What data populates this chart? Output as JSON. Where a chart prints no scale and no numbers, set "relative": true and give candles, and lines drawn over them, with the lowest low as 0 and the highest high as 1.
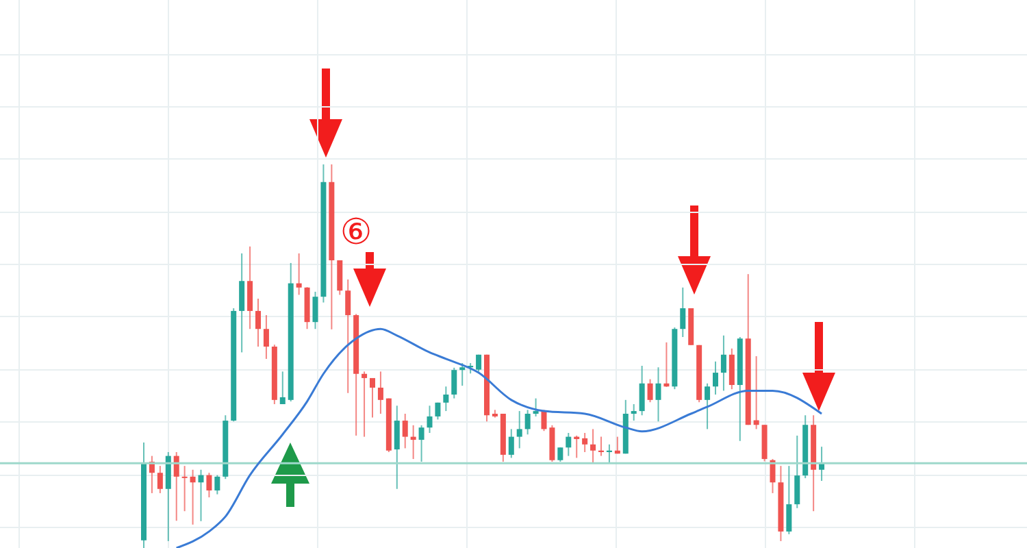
{
  "chart_data": {
    "type": "candlestick",
    "relative": true,
    "grid": true,
    "colors": [
      "#26a69a",
      "#ef5350",
      "#ef5350",
      "#26a69a",
      "#ef5350",
      "#ef5350",
      "#ef5350",
      "#26a69a",
      "#ef5350",
      "#26a69a",
      "#26a69a",
      "#26a69a",
      "#26a69a",
      "#ef5350",
      "#ef5350",
      "#ef5350",
      "#ef5350",
      "#26a69a",
      "#26a69a",
      "#ef5350",
      "#ef5350",
      "#26a69a",
      "#26a69a",
      "#ef5350",
      "#ef5350",
      "#ef5350",
      "#ef5350",
      "#ef5350",
      "#ef5350",
      "#ef5350",
      "#ef5350",
      "#26a69a",
      "#ef5350",
      "#ef5350",
      "#26a69a",
      "#26a69a",
      "#26a69a",
      "#26a69a",
      "#26a69a",
      "#26a69a",
      "#26a69a",
      "#26a69a",
      "#ef5350",
      "#ef5350",
      "#ef5350",
      "#26a69a",
      "#26a69a",
      "#26a69a",
      "#26a69a",
      "#ef5350",
      "#ef5350",
      "#26a69a",
      "#26a69a",
      "#ef5350",
      "#ef5350",
      "#ef5350",
      "#ef5350",
      "#26a69a",
      "#ef5350",
      "#26a69a",
      "#26a69a",
      "#26a69a",
      "#ef5350",
      "#26a69a",
      "#ef5350",
      "#26a69a",
      "#26a69a",
      "#ef5350",
      "#ef5350",
      "#26a69a",
      "#26a69a",
      "#26a69a",
      "#ef5350",
      "#26a69a",
      "#ef5350",
      "#ef5350",
      "#ef5350",
      "#ef5350",
      "#ef5350",
      "#26a69a",
      "#26a69a",
      "#26a69a",
      "#ef5350",
      "#26a69a"
    ],
    "annotations": [
      "⑥"
    ],
    "categories": [
      null,
      null,
      null,
      null,
      null,
      null,
      null,
      null,
      null,
      null,
      null,
      null,
      null,
      null,
      null,
      null,
      null,
      null,
      null,
      null,
      null,
      null,
      null,
      null,
      null,
      null,
      null,
      null,
      null,
      null,
      null,
      null,
      null,
      null,
      null,
      null,
      null,
      null,
      null,
      null,
      null,
      null,
      null,
      null,
      null,
      null,
      null,
      null,
      null,
      null,
      null,
      null,
      null,
      null,
      null,
      null,
      null,
      null,
      null,
      null,
      null,
      null,
      null,
      null,
      null,
      null,
      null,
      null,
      null,
      null,
      null,
      null,
      null,
      null,
      null,
      null,
      null,
      null,
      null,
      null,
      null,
      null,
      null,
      null
    ],
    "ohlc": [
      [
        0.02,
        0.275,
        0,
        0.22
      ],
      [
        0.225,
        0.24,
        0.143,
        0.196
      ],
      [
        0.196,
        0.214,
        0.143,
        0.154
      ],
      [
        0.154,
        0.25,
        0.018,
        0.24
      ],
      [
        0.24,
        0.25,
        0.071,
        0.186
      ],
      [
        0.186,
        0.214,
        0.096,
        0.183
      ],
      [
        0.186,
        0.204,
        0.061,
        0.171
      ],
      [
        0.171,
        0.204,
        0.07,
        0.19
      ],
      [
        0.19,
        0.196,
        0.132,
        0.15
      ],
      [
        0.15,
        0.19,
        0.14,
        0.186
      ],
      [
        0.186,
        0.346,
        0.18,
        0.332
      ],
      [
        0.332,
        0.625,
        0.33,
        0.618
      ],
      [
        0.618,
        0.768,
        0.51,
        0.696
      ],
      [
        0.696,
        0.786,
        0.571,
        0.618
      ],
      [
        0.618,
        0.65,
        0.525,
        0.571
      ],
      [
        0.571,
        0.607,
        0.493,
        0.525
      ],
      [
        0.525,
        0.53,
        0.375,
        0.386
      ],
      [
        0.375,
        0.46,
        0.375,
        0.393
      ],
      [
        0.386,
        0.743,
        0.382,
        0.69
      ],
      [
        0.69,
        0.768,
        0.66,
        0.679
      ],
      [
        0.679,
        0.68,
        0.571,
        0.589
      ],
      [
        0.589,
        0.668,
        0.571,
        0.655
      ],
      [
        0.655,
        1,
        0.64,
        0.954
      ],
      [
        0.954,
        1,
        0.57,
        0.75
      ],
      [
        0.75,
        0.75,
        0.66,
        0.671
      ],
      [
        0.671,
        0.7,
        0.404,
        0.607
      ],
      [
        0.607,
        0.61,
        0.293,
        0.454
      ],
      [
        0.454,
        0.46,
        0.29,
        0.443
      ],
      [
        0.443,
        0.443,
        0.34,
        0.418
      ],
      [
        0.418,
        0.46,
        0.35,
        0.386
      ],
      [
        0.39,
        0.39,
        0.25,
        0.254
      ],
      [
        0.257,
        0.371,
        0.154,
        0.332
      ],
      [
        0.332,
        0.35,
        0.26,
        0.29
      ],
      [
        0.29,
        0.32,
        0.232,
        0.282
      ],
      [
        0.282,
        0.32,
        0.225,
        0.314
      ],
      [
        0.314,
        0.371,
        0.3,
        0.343
      ],
      [
        0.343,
        0.379,
        0.335,
        0.379
      ],
      [
        0.379,
        0.421,
        0.357,
        0.4
      ],
      [
        0.4,
        0.47,
        0.39,
        0.464
      ],
      [
        0.464,
        0.482,
        0.423,
        0.471
      ],
      [
        0.471,
        0.482,
        0.455,
        0.475
      ],
      [
        0.465,
        0.504,
        0.46,
        0.504
      ],
      [
        0.504,
        0.504,
        0.33,
        0.346
      ],
      [
        0.35,
        0.36,
        0.34,
        0.343
      ],
      [
        0.35,
        0.35,
        0.225,
        0.243
      ],
      [
        0.243,
        0.31,
        0.235,
        0.29
      ],
      [
        0.29,
        0.357,
        0.26,
        0.31
      ],
      [
        0.31,
        0.36,
        0.296,
        0.35
      ],
      [
        0.35,
        0.39,
        0.343,
        0.357
      ],
      [
        0.357,
        0.36,
        0.305,
        0.31
      ],
      [
        0.314,
        0.32,
        0.225,
        0.229
      ],
      [
        0.229,
        0.262,
        0.225,
        0.262
      ],
      [
        0.262,
        0.3,
        0.24,
        0.29
      ],
      [
        0.29,
        0.293,
        0.235,
        0.284
      ],
      [
        0.286,
        0.3,
        0.25,
        0.27
      ],
      [
        0.27,
        0.31,
        0.221,
        0.254
      ],
      [
        0.254,
        0.29,
        0.24,
        0.25
      ],
      [
        0.25,
        0.27,
        0.221,
        0.254
      ],
      [
        0.254,
        0.29,
        0.246,
        0.246
      ],
      [
        0.246,
        0.386,
        0.246,
        0.35
      ],
      [
        0.35,
        0.375,
        0.332,
        0.357
      ],
      [
        0.357,
        0.475,
        0.346,
        0.429
      ],
      [
        0.429,
        0.44,
        0.38,
        0.386
      ],
      [
        0.386,
        0.471,
        0.33,
        0.429
      ],
      [
        0.429,
        0.536,
        0.42,
        0.421
      ],
      [
        0.421,
        0.575,
        0.414,
        0.571
      ],
      [
        0.571,
        0.679,
        0.55,
        0.625
      ],
      [
        0.625,
        0.625,
        0.529,
        0.529
      ],
      [
        0.529,
        0.529,
        0.38,
        0.386
      ],
      [
        0.386,
        0.429,
        0.31,
        0.421
      ],
      [
        0.421,
        0.486,
        0.4,
        0.457
      ],
      [
        0.457,
        0.554,
        0.41,
        0.504
      ],
      [
        0.504,
        0.52,
        0.414,
        0.425
      ],
      [
        0.425,
        0.55,
        0.279,
        0.546
      ],
      [
        0.546,
        0.714,
        0.321,
        0.321
      ],
      [
        0.333,
        0.5,
        0.31,
        0.321
      ],
      [
        0.321,
        0.321,
        0.226,
        0.232
      ],
      [
        0.229,
        0.232,
        0.143,
        0.171
      ],
      [
        0.171,
        0.214,
        0.018,
        0.043
      ],
      [
        0.043,
        0.214,
        0.036,
        0.114
      ],
      [
        0.114,
        0.293,
        0.104,
        0.189
      ],
      [
        0.189,
        0.346,
        0.182,
        0.321
      ],
      [
        0.321,
        0.346,
        0.096,
        0.204
      ],
      [
        0.204,
        0.264,
        0.175,
        0.221
      ]
    ],
    "series": [
      {
        "type": "line",
        "color": "#3a7bd5",
        "values": [
          null,
          null,
          null,
          null,
          0,
          null,
          null,
          null,
          0.043,
          null,
          0.082,
          null,
          null,
          0.19,
          null,
          null,
          null,
          0.296,
          null,
          null,
          0.382,
          null,
          0.454,
          null,
          null,
          null,
          0.546,
          null,
          null,
          0.571,
          null,
          0.554,
          null,
          null,
          null,
          0.51,
          null,
          0.493,
          null,
          null,
          null,
          0.457,
          null,
          null,
          null,
          0.386,
          null,
          null,
          null,
          0.357,
          null,
          null,
          null,
          null,
          0.35,
          null,
          null,
          null,
          null,
          0.314,
          null,
          0.304,
          null,
          null,
          null,
          null,
          null,
          0.35,
          null,
          0.368,
          null,
          null,
          null,
          null,
          0.41,
          null,
          null,
          0.41,
          null,
          null,
          null,
          null,
          null,
          0.35
        ]
      }
    ],
    "ref_lines": [
      {
        "axis": "y",
        "value": 0.221,
        "color": "#9ed8cb"
      }
    ]
  }
}
